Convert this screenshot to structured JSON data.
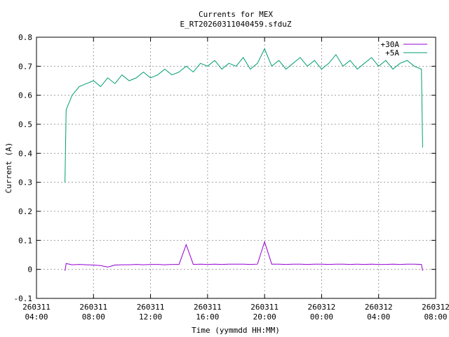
{
  "chart_data": {
    "type": "line",
    "title": "Currents for MEX",
    "subtitle": "E_RT20260311040459.sfduZ",
    "x_label": "Time (yymmdd HH:MM)",
    "y_label": "Current (A)",
    "x": [
      "260311 06:00",
      "260311 06:05",
      "260311 06:30",
      "260311 07:00",
      "260311 07:30",
      "260311 08:00",
      "260311 08:30",
      "260311 09:00",
      "260311 09:30",
      "260311 10:00",
      "260311 10:30",
      "260311 11:00",
      "260311 11:30",
      "260311 12:00",
      "260311 12:30",
      "260311 13:00",
      "260311 13:30",
      "260311 14:00",
      "260311 14:30",
      "260311 15:00",
      "260311 15:30",
      "260311 16:00",
      "260311 16:30",
      "260311 17:00",
      "260311 17:30",
      "260311 18:00",
      "260311 18:30",
      "260311 19:00",
      "260311 19:30",
      "260311 20:00",
      "260311 20:30",
      "260311 21:00",
      "260311 21:30",
      "260311 22:00",
      "260311 22:30",
      "260311 23:00",
      "260311 23:30",
      "260312 00:00",
      "260312 00:30",
      "260312 01:00",
      "260312 01:30",
      "260312 02:00",
      "260312 02:30",
      "260312 03:00",
      "260312 03:30",
      "260312 04:00",
      "260312 04:30",
      "260312 05:00",
      "260312 05:30",
      "260312 06:00",
      "260312 06:30",
      "260312 07:00",
      "260312 07:05"
    ],
    "series": [
      {
        "name": "+30A",
        "color": "#9400d3",
        "values": [
          -0.005,
          0.02,
          0.016,
          0.017,
          0.016,
          0.015,
          0.013,
          0.008,
          0.015,
          0.016,
          0.016,
          0.017,
          0.016,
          0.017,
          0.017,
          0.016,
          0.017,
          0.017,
          0.085,
          0.017,
          0.018,
          0.017,
          0.018,
          0.017,
          0.018,
          0.018,
          0.018,
          0.017,
          0.018,
          0.095,
          0.018,
          0.018,
          0.017,
          0.018,
          0.018,
          0.017,
          0.018,
          0.018,
          0.017,
          0.018,
          0.018,
          0.017,
          0.018,
          0.017,
          0.018,
          0.017,
          0.017,
          0.018,
          0.017,
          0.018,
          0.018,
          0.017,
          -0.005
        ]
      },
      {
        "name": "+5A",
        "color": "#009e73",
        "values": [
          0.3,
          0.55,
          0.6,
          0.63,
          0.64,
          0.65,
          0.63,
          0.66,
          0.64,
          0.67,
          0.65,
          0.66,
          0.68,
          0.66,
          0.67,
          0.69,
          0.67,
          0.68,
          0.7,
          0.68,
          0.71,
          0.7,
          0.72,
          0.69,
          0.71,
          0.7,
          0.73,
          0.69,
          0.71,
          0.76,
          0.7,
          0.72,
          0.69,
          0.71,
          0.73,
          0.7,
          0.72,
          0.69,
          0.71,
          0.74,
          0.7,
          0.72,
          0.69,
          0.71,
          0.73,
          0.7,
          0.72,
          0.69,
          0.71,
          0.72,
          0.7,
          0.69,
          0.42
        ]
      }
    ],
    "xlim": [
      "260311 04:00",
      "260312 08:00"
    ],
    "xticks": [
      "260311 04:00",
      "260311 08:00",
      "260311 12:00",
      "260311 16:00",
      "260311 20:00",
      "260312 00:00",
      "260312 04:00",
      "260312 08:00"
    ],
    "ylim": [
      -0.1,
      0.8
    ],
    "yticks": [
      -0.1,
      0,
      0.1,
      0.2,
      0.3,
      0.4,
      0.5,
      0.6,
      0.7,
      0.8
    ],
    "grid": true,
    "legend": "top-right"
  }
}
